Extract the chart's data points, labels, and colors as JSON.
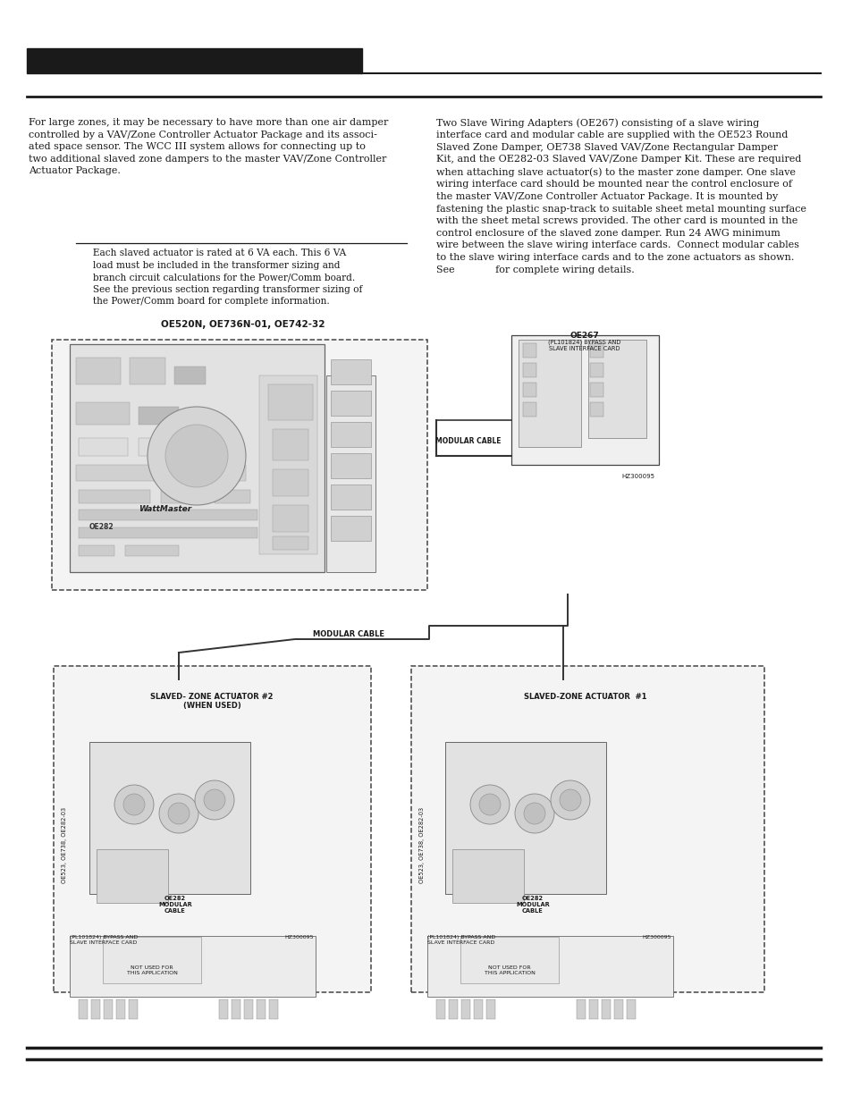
{
  "bg_color": "#ffffff",
  "header_bar_color": "#1a1a1a",
  "text_color": "#1a1a1a",
  "line_color": "#1a1a1a",
  "font_size_body": 8.0,
  "font_size_note": 7.6,
  "left_para1": "For large zones, it may be necessary to have more than one air damper\ncontrolled by a VAV/Zone Controller Actuator Package and its associ-\nated space sensor. The WCC III system allows for connecting up to\ntwo additional slaved zone dampers to the master VAV/Zone Controller\nActuator Package.",
  "left_note_text": "     Each slaved actuator is rated at 6 VA each. This 6 VA\n     load must be included in the transformer sizing and\n     branch circuit calculations for the Power/Comm board.\n     See the previous section regarding transformer sizing of\n     the Power/Comm board for complete information.",
  "right_para1": "Two Slave Wiring Adapters (OE267) consisting of a slave wiring\ninterface card and modular cable are supplied with the OE523 Round\nSlaved Zone Damper, OE738 Slaved VAV/Zone Rectangular Damper\nKit, and the OE282-03 Slaved VAV/Zone Damper Kit. These are required\nwhen attaching slave actuator(s) to the master zone damper. One slave\nwiring interface card should be mounted near the control enclosure of\nthe master VAV/Zone Controller Actuator Package. It is mounted by\nfastening the plastic snap-track to suitable sheet metal mounting surface\nwith the sheet metal screws provided. The other card is mounted in the\ncontrol enclosure of the slaved zone damper. Run 24 AWG minimum\nwire between the slave wiring interface cards.  Connect modular cables\nto the slave wiring interface cards and to the zone actuators as shown.\nSee             for complete wiring details."
}
